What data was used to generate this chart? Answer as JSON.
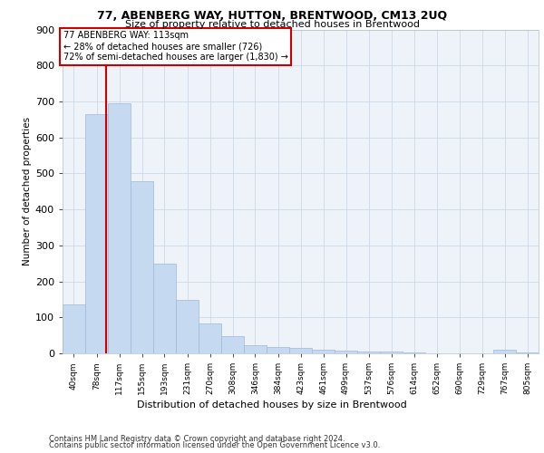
{
  "title1": "77, ABENBERG WAY, HUTTON, BRENTWOOD, CM13 2UQ",
  "title2": "Size of property relative to detached houses in Brentwood",
  "xlabel": "Distribution of detached houses by size in Brentwood",
  "ylabel": "Number of detached properties",
  "footer1": "Contains HM Land Registry data © Crown copyright and database right 2024.",
  "footer2": "Contains public sector information licensed under the Open Government Licence v3.0.",
  "annotation_title": "77 ABENBERG WAY: 113sqm",
  "annotation_line1": "← 28% of detached houses are smaller (726)",
  "annotation_line2": "72% of semi-detached houses are larger (1,830) →",
  "property_size": 113,
  "bar_color": "#c5d9f0",
  "bar_edge_color": "#a0b8d8",
  "vline_color": "#cc0000",
  "annotation_box_color": "#cc0000",
  "grid_color": "#ccd9e8",
  "bg_color": "#eef3f9",
  "categories": [
    "40sqm",
    "78sqm",
    "117sqm",
    "155sqm",
    "193sqm",
    "231sqm",
    "270sqm",
    "308sqm",
    "346sqm",
    "384sqm",
    "423sqm",
    "461sqm",
    "499sqm",
    "537sqm",
    "576sqm",
    "614sqm",
    "652sqm",
    "690sqm",
    "729sqm",
    "767sqm",
    "805sqm"
  ],
  "values": [
    137,
    665,
    695,
    478,
    248,
    148,
    83,
    47,
    22,
    17,
    16,
    10,
    7,
    5,
    5,
    2,
    1,
    1,
    0,
    10,
    2
  ],
  "bin_edges": [
    40,
    78,
    117,
    155,
    193,
    231,
    270,
    308,
    346,
    384,
    423,
    461,
    499,
    537,
    576,
    614,
    652,
    690,
    729,
    767,
    805,
    843
  ],
  "ylim": [
    0,
    900
  ],
  "yticks": [
    0,
    100,
    200,
    300,
    400,
    500,
    600,
    700,
    800,
    900
  ]
}
